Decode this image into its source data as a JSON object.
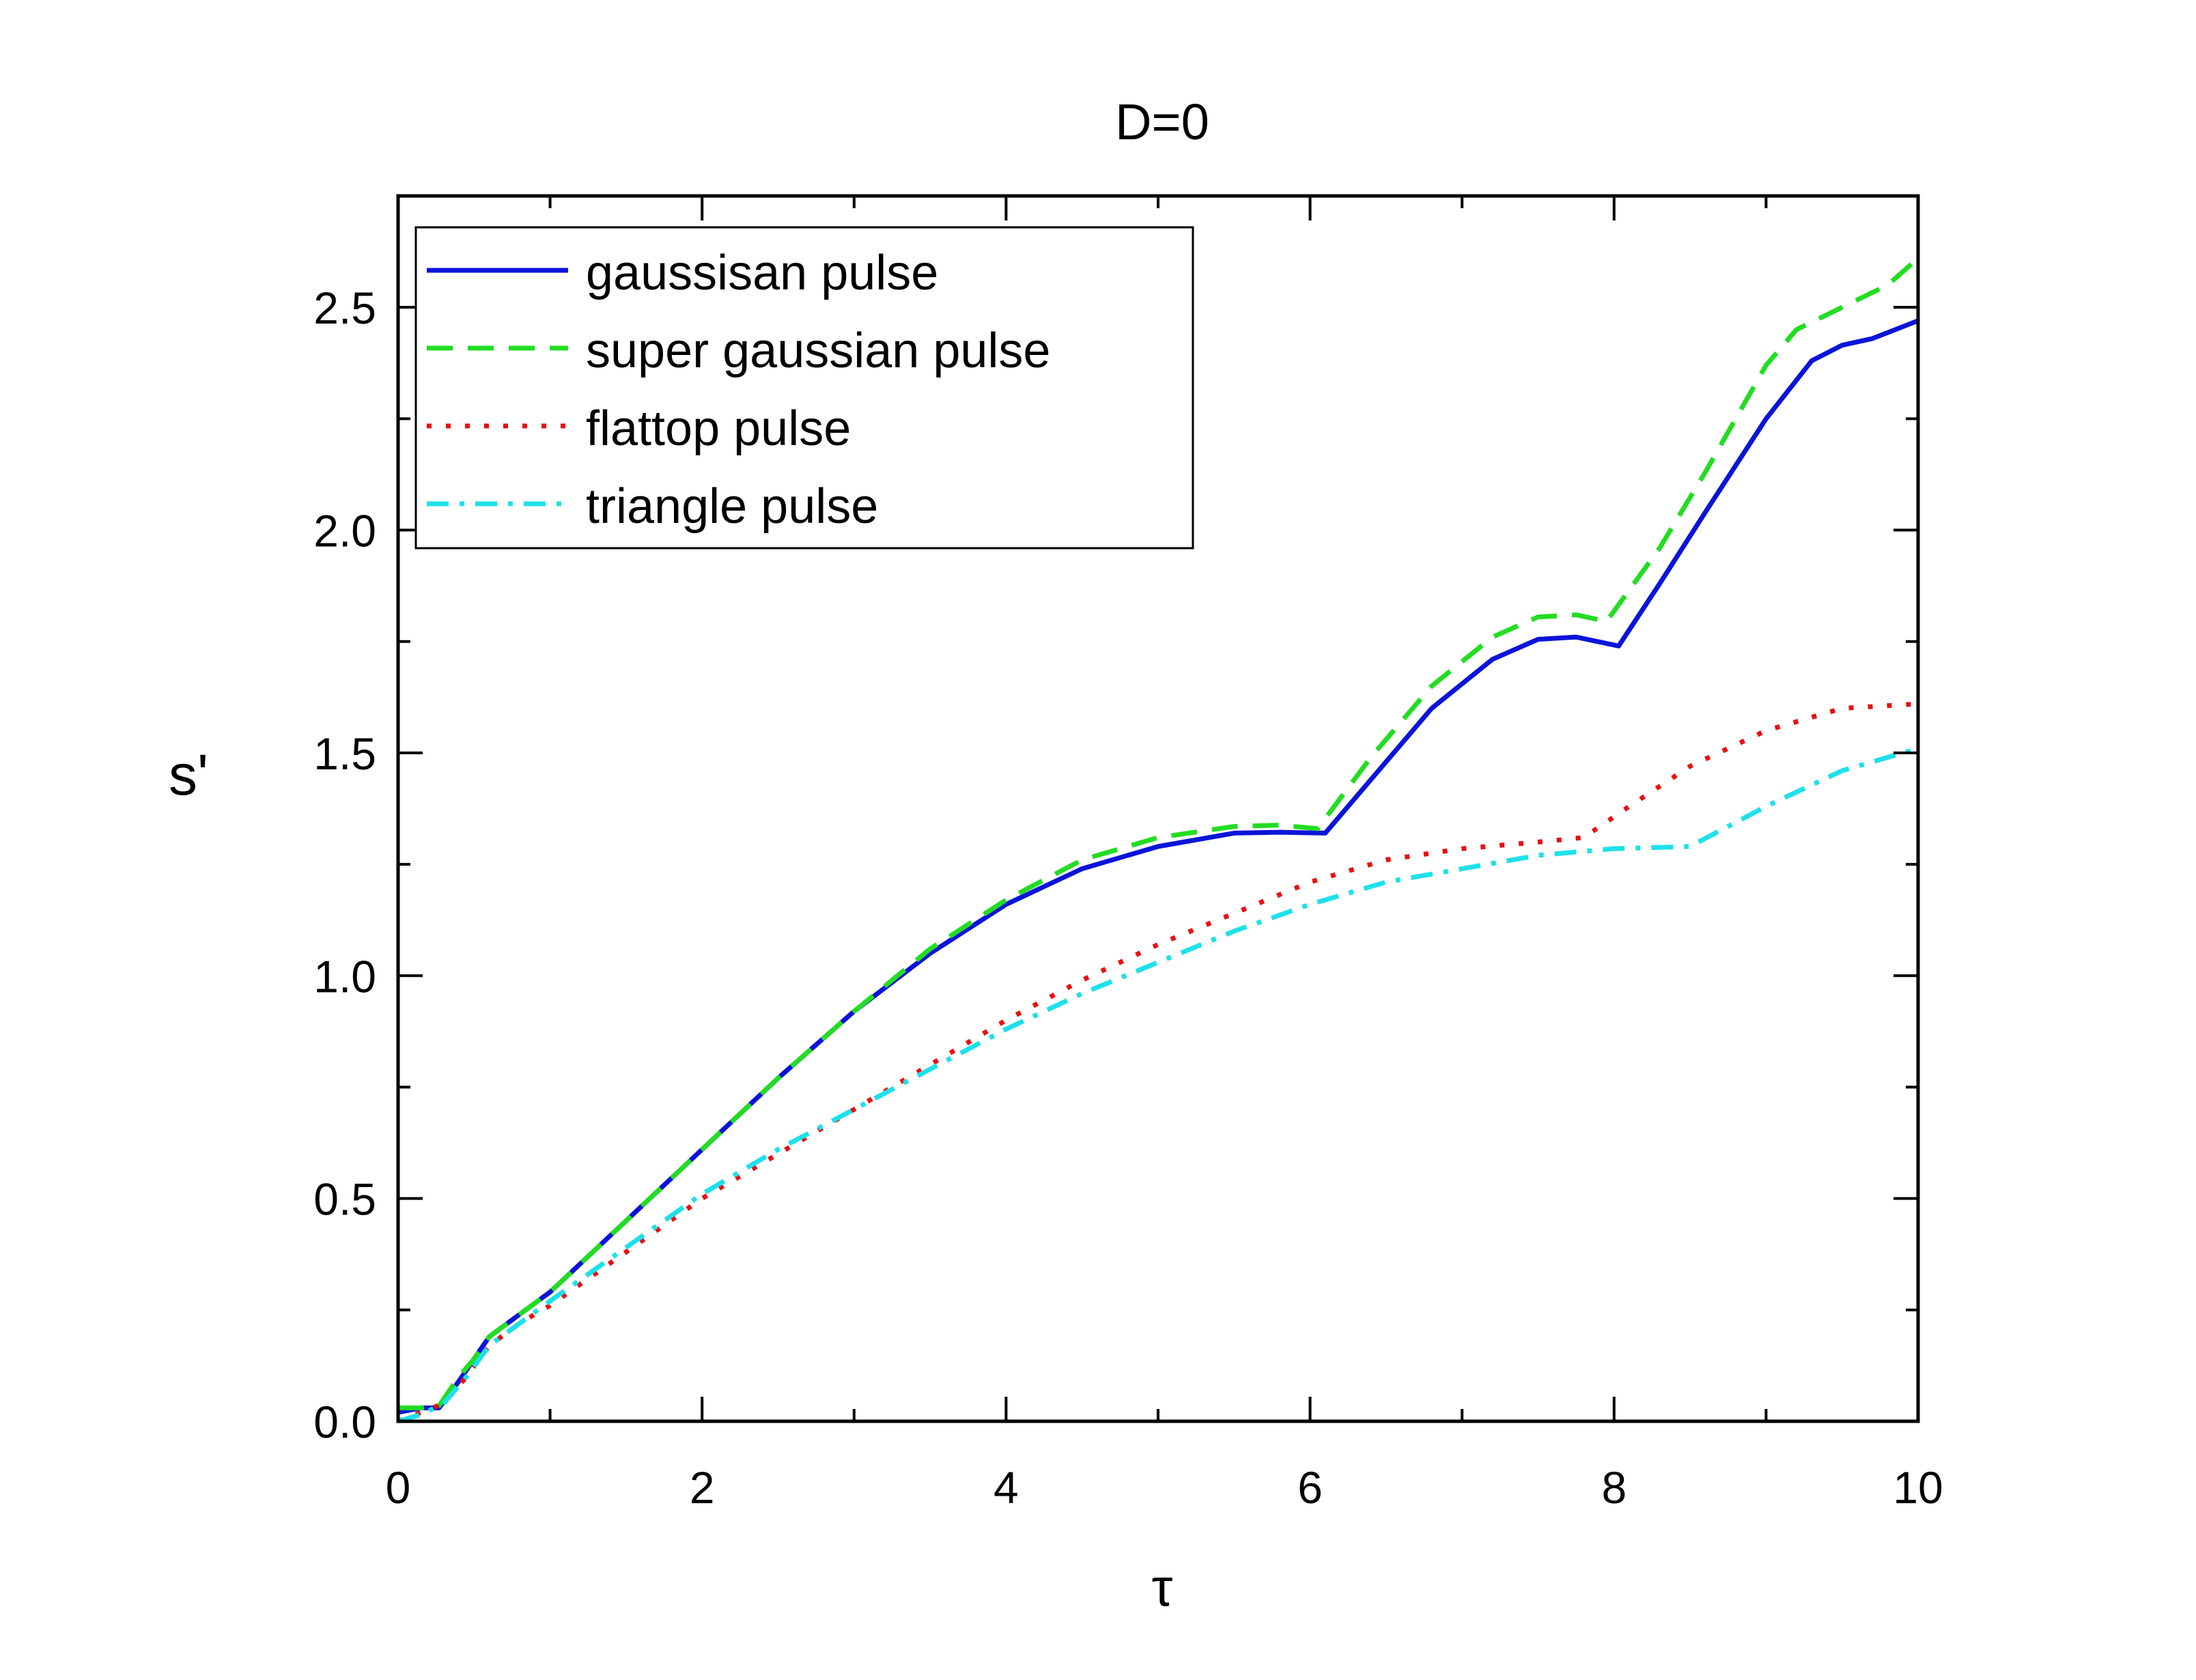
{
  "chart_data": {
    "type": "line",
    "title": "D=0",
    "xlabel": "τ",
    "ylabel": "s'",
    "xlim": [
      0,
      10
    ],
    "ylim": [
      0,
      2.75
    ],
    "x_ticks": [
      "0",
      "2",
      "4",
      "6",
      "8",
      "10"
    ],
    "y_ticks": [
      "0.0",
      "0.5",
      "1.0",
      "1.5",
      "2.0",
      "2.5"
    ],
    "grid": false,
    "legend_position": "top-left",
    "series": [
      {
        "name": "gaussisan pulse",
        "color": "#0a14d8",
        "style": "solid",
        "points": [
          [
            0,
            0.02
          ],
          [
            0.15,
            0.03
          ],
          [
            0.27,
            0.03
          ],
          [
            0.4,
            0.09
          ],
          [
            0.5,
            0.14
          ],
          [
            0.6,
            0.19
          ],
          [
            0.8,
            0.24
          ],
          [
            1,
            0.29
          ],
          [
            1.5,
            0.45
          ],
          [
            2,
            0.61
          ],
          [
            2.5,
            0.77
          ],
          [
            3,
            0.92
          ],
          [
            3.5,
            1.05
          ],
          [
            4,
            1.16
          ],
          [
            4.5,
            1.24
          ],
          [
            5,
            1.29
          ],
          [
            5.5,
            1.32
          ],
          [
            5.8,
            1.322
          ],
          [
            6.1,
            1.32
          ],
          [
            6.4,
            1.44
          ],
          [
            6.8,
            1.6
          ],
          [
            7.2,
            1.71
          ],
          [
            7.5,
            1.755
          ],
          [
            7.75,
            1.76
          ],
          [
            8.03,
            1.74
          ],
          [
            8.3,
            1.88
          ],
          [
            8.6,
            2.04
          ],
          [
            9,
            2.25
          ],
          [
            9.3,
            2.38
          ],
          [
            9.5,
            2.415
          ],
          [
            9.7,
            2.43
          ],
          [
            10,
            2.47
          ]
        ]
      },
      {
        "name": "super gaussian pulse",
        "color": "#22dd22",
        "style": "dashed",
        "points": [
          [
            0,
            0.03
          ],
          [
            0.15,
            0.03
          ],
          [
            0.27,
            0.035
          ],
          [
            0.4,
            0.1
          ],
          [
            0.5,
            0.14
          ],
          [
            0.6,
            0.19
          ],
          [
            0.8,
            0.24
          ],
          [
            1,
            0.29
          ],
          [
            1.5,
            0.45
          ],
          [
            2,
            0.61
          ],
          [
            2.5,
            0.77
          ],
          [
            3,
            0.92
          ],
          [
            3.5,
            1.06
          ],
          [
            4,
            1.17
          ],
          [
            4.5,
            1.26
          ],
          [
            5,
            1.31
          ],
          [
            5.5,
            1.335
          ],
          [
            5.8,
            1.338
          ],
          [
            6.05,
            1.33
          ],
          [
            6.4,
            1.49
          ],
          [
            6.8,
            1.65
          ],
          [
            7.2,
            1.76
          ],
          [
            7.5,
            1.805
          ],
          [
            7.75,
            1.81
          ],
          [
            7.95,
            1.795
          ],
          [
            8.3,
            1.96
          ],
          [
            8.6,
            2.13
          ],
          [
            9,
            2.37
          ],
          [
            9.2,
            2.45
          ],
          [
            9.5,
            2.5
          ],
          [
            9.8,
            2.55
          ],
          [
            10,
            2.61
          ]
        ]
      },
      {
        "name": "flattop pulse",
        "color": "#e81010",
        "style": "dotted",
        "points": [
          [
            0,
            0.0
          ],
          [
            0.15,
            0.02
          ],
          [
            0.3,
            0.04
          ],
          [
            0.45,
            0.1
          ],
          [
            0.6,
            0.17
          ],
          [
            0.8,
            0.22
          ],
          [
            1,
            0.26
          ],
          [
            1.5,
            0.38
          ],
          [
            2,
            0.5
          ],
          [
            2.5,
            0.6
          ],
          [
            3,
            0.7
          ],
          [
            3.5,
            0.8
          ],
          [
            4,
            0.9
          ],
          [
            4.5,
            0.99
          ],
          [
            5,
            1.07
          ],
          [
            5.5,
            1.14
          ],
          [
            6,
            1.21
          ],
          [
            6.5,
            1.26
          ],
          [
            7,
            1.285
          ],
          [
            7.5,
            1.3
          ],
          [
            7.8,
            1.31
          ],
          [
            8.1,
            1.38
          ],
          [
            8.5,
            1.47
          ],
          [
            9,
            1.55
          ],
          [
            9.5,
            1.6
          ],
          [
            10,
            1.61
          ]
        ]
      },
      {
        "name": "triangle pulse",
        "color": "#1ee0ea",
        "style": "dashdot",
        "points": [
          [
            0,
            0.0
          ],
          [
            0.15,
            0.015
          ],
          [
            0.3,
            0.04
          ],
          [
            0.45,
            0.1
          ],
          [
            0.6,
            0.17
          ],
          [
            0.8,
            0.22
          ],
          [
            1,
            0.27
          ],
          [
            1.5,
            0.39
          ],
          [
            2,
            0.51
          ],
          [
            2.5,
            0.61
          ],
          [
            3,
            0.7
          ],
          [
            3.5,
            0.79
          ],
          [
            4,
            0.88
          ],
          [
            4.5,
            0.96
          ],
          [
            5,
            1.03
          ],
          [
            5.5,
            1.1
          ],
          [
            6,
            1.16
          ],
          [
            6.5,
            1.21
          ],
          [
            7,
            1.24
          ],
          [
            7.5,
            1.27
          ],
          [
            8,
            1.285
          ],
          [
            8.5,
            1.29
          ],
          [
            9,
            1.38
          ],
          [
            9.5,
            1.46
          ],
          [
            10,
            1.51
          ]
        ]
      }
    ]
  }
}
